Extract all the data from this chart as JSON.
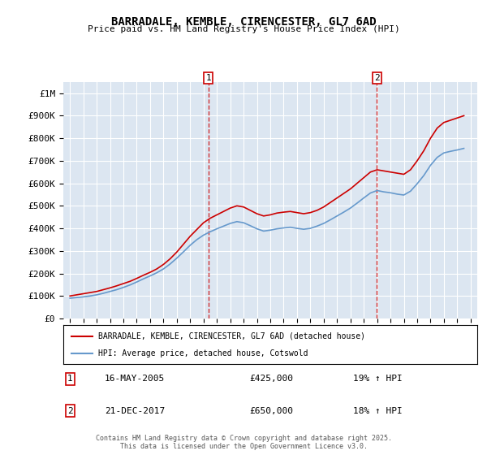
{
  "title": "BARRADALE, KEMBLE, CIRENCESTER, GL7 6AD",
  "subtitle": "Price paid vs. HM Land Registry's House Price Index (HPI)",
  "legend_line1": "BARRADALE, KEMBLE, CIRENCESTER, GL7 6AD (detached house)",
  "legend_line2": "HPI: Average price, detached house, Cotswold",
  "annotation1": {
    "num": "1",
    "date": "16-MAY-2005",
    "price": "£425,000",
    "hpi": "19% ↑ HPI",
    "x_year": 2005.37
  },
  "annotation2": {
    "num": "2",
    "date": "21-DEC-2017",
    "price": "£650,000",
    "hpi": "18% ↑ HPI",
    "x_year": 2017.97
  },
  "red_color": "#cc0000",
  "blue_color": "#6699cc",
  "background_color": "#dce6f1",
  "ylim": [
    0,
    1050000
  ],
  "xlim": [
    1994.5,
    2025.5
  ],
  "yticks": [
    0,
    100000,
    200000,
    300000,
    400000,
    500000,
    600000,
    700000,
    800000,
    900000,
    1000000
  ],
  "ytick_labels": [
    "£0",
    "£100K",
    "£200K",
    "£300K",
    "£400K",
    "£500K",
    "£600K",
    "£700K",
    "£800K",
    "£900K",
    "£1M"
  ],
  "xticks": [
    1995,
    1996,
    1997,
    1998,
    1999,
    2000,
    2001,
    2002,
    2003,
    2004,
    2005,
    2006,
    2007,
    2008,
    2009,
    2010,
    2011,
    2012,
    2013,
    2014,
    2015,
    2016,
    2017,
    2018,
    2019,
    2020,
    2021,
    2022,
    2023,
    2024,
    2025
  ],
  "footer": "Contains HM Land Registry data © Crown copyright and database right 2025.\nThis data is licensed under the Open Government Licence v3.0.",
  "red_data": {
    "x": [
      1995.0,
      1995.5,
      1996.0,
      1996.5,
      1997.0,
      1997.5,
      1998.0,
      1998.5,
      1999.0,
      1999.5,
      2000.0,
      2000.5,
      2001.0,
      2001.5,
      2002.0,
      2002.5,
      2003.0,
      2003.5,
      2004.0,
      2004.5,
      2005.0,
      2005.5,
      2006.0,
      2006.5,
      2007.0,
      2007.5,
      2008.0,
      2008.5,
      2009.0,
      2009.5,
      2010.0,
      2010.5,
      2011.0,
      2011.5,
      2012.0,
      2012.5,
      2013.0,
      2013.5,
      2014.0,
      2014.5,
      2015.0,
      2015.5,
      2016.0,
      2016.5,
      2017.0,
      2017.5,
      2018.0,
      2018.5,
      2019.0,
      2019.5,
      2020.0,
      2020.5,
      2021.0,
      2021.5,
      2022.0,
      2022.5,
      2023.0,
      2023.5,
      2024.0,
      2024.5
    ],
    "y": [
      100000,
      105000,
      110000,
      115000,
      120000,
      128000,
      136000,
      145000,
      155000,
      165000,
      178000,
      192000,
      205000,
      220000,
      240000,
      265000,
      295000,
      330000,
      365000,
      395000,
      425000,
      445000,
      460000,
      475000,
      490000,
      500000,
      495000,
      480000,
      465000,
      455000,
      460000,
      468000,
      472000,
      475000,
      470000,
      465000,
      470000,
      480000,
      495000,
      515000,
      535000,
      555000,
      575000,
      600000,
      625000,
      650000,
      660000,
      655000,
      650000,
      645000,
      640000,
      660000,
      700000,
      745000,
      800000,
      845000,
      870000,
      880000,
      890000,
      900000
    ]
  },
  "blue_data": {
    "x": [
      1995.0,
      1995.5,
      1996.0,
      1996.5,
      1997.0,
      1997.5,
      1998.0,
      1998.5,
      1999.0,
      1999.5,
      2000.0,
      2000.5,
      2001.0,
      2001.5,
      2002.0,
      2002.5,
      2003.0,
      2003.5,
      2004.0,
      2004.5,
      2005.0,
      2005.5,
      2006.0,
      2006.5,
      2007.0,
      2007.5,
      2008.0,
      2008.5,
      2009.0,
      2009.5,
      2010.0,
      2010.5,
      2011.0,
      2011.5,
      2012.0,
      2012.5,
      2013.0,
      2013.5,
      2014.0,
      2014.5,
      2015.0,
      2015.5,
      2016.0,
      2016.5,
      2017.0,
      2017.5,
      2018.0,
      2018.5,
      2019.0,
      2019.5,
      2020.0,
      2020.5,
      2021.0,
      2021.5,
      2022.0,
      2022.5,
      2023.0,
      2023.5,
      2024.0,
      2024.5
    ],
    "y": [
      90000,
      93000,
      96000,
      100000,
      105000,
      112000,
      120000,
      128000,
      138000,
      149000,
      162000,
      176000,
      189000,
      203000,
      220000,
      242000,
      268000,
      296000,
      325000,
      350000,
      370000,
      385000,
      398000,
      410000,
      422000,
      430000,
      425000,
      412000,
      398000,
      388000,
      392000,
      398000,
      402000,
      405000,
      400000,
      396000,
      400000,
      410000,
      422000,
      438000,
      455000,
      472000,
      490000,
      512000,
      535000,
      557000,
      568000,
      562000,
      558000,
      552000,
      548000,
      565000,
      598000,
      635000,
      680000,
      715000,
      735000,
      742000,
      748000,
      755000
    ]
  }
}
